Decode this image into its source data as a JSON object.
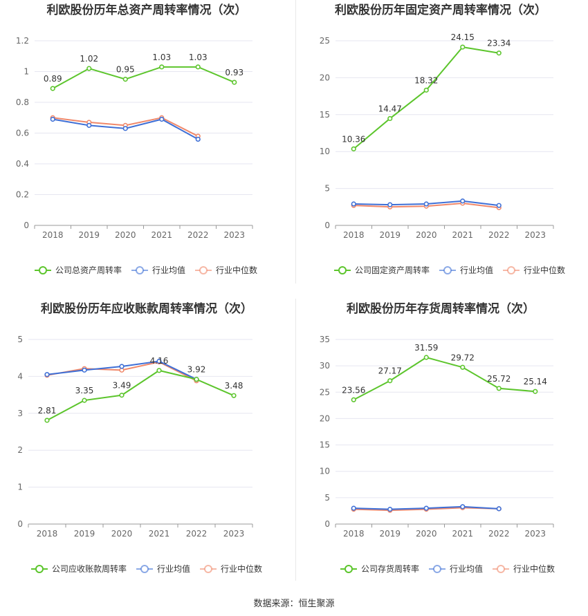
{
  "colors": {
    "company": "#5cc52c",
    "avg": "#3e6fd6",
    "median": "#f0886a",
    "grid": "#e6e6f0",
    "axis": "#666666",
    "text": "#333333"
  },
  "source": "数据来源：恒生聚源",
  "chart_data": [
    {
      "type": "line",
      "title": "利欧股份历年总资产周转率情况（次）",
      "categories": [
        "2018",
        "2019",
        "2020",
        "2021",
        "2022",
        "2023"
      ],
      "ylim": [
        0,
        1.2
      ],
      "yticks": [
        0,
        0.2,
        0.4,
        0.6,
        0.8,
        1,
        1.2
      ],
      "series": [
        {
          "name": "公司总资产周转率",
          "key": "company",
          "values": [
            0.89,
            1.02,
            0.95,
            1.03,
            1.03,
            0.93
          ],
          "labels": [
            "0.89",
            "1.02",
            "0.95",
            "1.03",
            "1.03",
            "0.93"
          ]
        },
        {
          "name": "行业均值",
          "key": "avg",
          "values": [
            0.69,
            0.65,
            0.63,
            0.69,
            0.56,
            null
          ]
        },
        {
          "name": "行业中位数",
          "key": "median",
          "values": [
            0.7,
            0.67,
            0.65,
            0.7,
            0.58,
            null
          ]
        }
      ]
    },
    {
      "type": "line",
      "title": "利欧股份历年固定资产周转率情况（次）",
      "categories": [
        "2018",
        "2019",
        "2020",
        "2021",
        "2022",
        "2023"
      ],
      "ylim": [
        0,
        25
      ],
      "yticks": [
        0,
        5,
        10,
        15,
        20,
        25
      ],
      "series": [
        {
          "name": "公司固定资产周转率",
          "key": "company",
          "values": [
            10.36,
            14.47,
            18.32,
            24.15,
            23.34,
            null
          ],
          "labels": [
            "10.36",
            "14.47",
            "18.32",
            "24.15",
            "23.34",
            ""
          ]
        },
        {
          "name": "行业均值",
          "key": "avg",
          "values": [
            2.9,
            2.8,
            2.9,
            3.3,
            2.7,
            null
          ]
        },
        {
          "name": "行业中位数",
          "key": "median",
          "values": [
            2.7,
            2.5,
            2.6,
            3.0,
            2.4,
            null
          ]
        }
      ]
    },
    {
      "type": "line",
      "title": "利欧股份历年应收账款周转率情况（次）",
      "categories": [
        "2018",
        "2019",
        "2020",
        "2021",
        "2022",
        "2023"
      ],
      "ylim": [
        0,
        5
      ],
      "yticks": [
        0,
        1,
        2,
        3,
        4,
        5
      ],
      "series": [
        {
          "name": "公司应收账款周转率",
          "key": "company",
          "values": [
            2.81,
            3.35,
            3.49,
            4.16,
            3.92,
            3.48
          ],
          "labels": [
            "2.81",
            "3.35",
            "3.49",
            "4.16",
            "3.92",
            "3.48"
          ]
        },
        {
          "name": "行业均值",
          "key": "avg",
          "values": [
            4.05,
            4.17,
            4.27,
            4.41,
            3.92,
            null
          ]
        },
        {
          "name": "行业中位数",
          "key": "median",
          "values": [
            4.03,
            4.21,
            4.17,
            4.39,
            3.88,
            null
          ]
        }
      ]
    },
    {
      "type": "line",
      "title": "利欧股份历年存货周转率情况（次）",
      "categories": [
        "2018",
        "2019",
        "2020",
        "2021",
        "2022",
        "2023"
      ],
      "ylim": [
        0,
        35
      ],
      "yticks": [
        0,
        5,
        10,
        15,
        20,
        25,
        30,
        35
      ],
      "series": [
        {
          "name": "公司存货周转率",
          "key": "company",
          "values": [
            23.56,
            27.17,
            31.59,
            29.72,
            25.72,
            25.14
          ],
          "labels": [
            "23.56",
            "27.17",
            "31.59",
            "29.72",
            "25.72",
            "25.14"
          ]
        },
        {
          "name": "行业均值",
          "key": "avg",
          "values": [
            3.0,
            2.8,
            3.0,
            3.3,
            2.9,
            null
          ]
        },
        {
          "name": "行业中位数",
          "key": "median",
          "values": [
            2.8,
            2.6,
            2.8,
            3.1,
            2.9,
            null
          ]
        }
      ]
    }
  ]
}
